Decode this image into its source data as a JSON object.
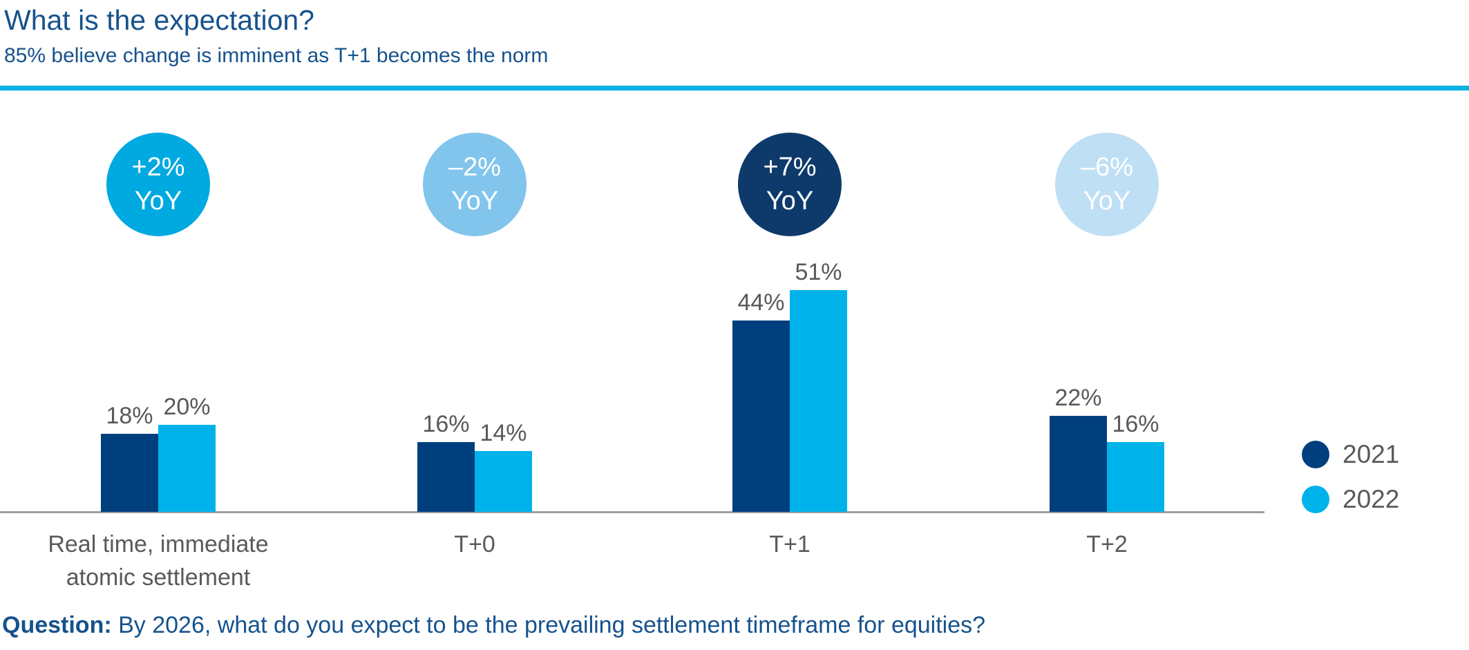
{
  "chart_data": {
    "type": "bar",
    "title": "What is the expectation?",
    "subtitle": "85% believe change is imminent as T+1 becomes the norm",
    "categories": [
      [
        "Real time, immediate",
        "atomic settlement"
      ],
      [
        "T+0"
      ],
      [
        "T+1"
      ],
      [
        "T+2"
      ]
    ],
    "series": [
      {
        "name": "2021",
        "color": "#003F7E",
        "values": [
          18,
          16,
          44,
          22
        ]
      },
      {
        "name": "2022",
        "color": "#00B2EA",
        "values": [
          20,
          14,
          51,
          16
        ]
      }
    ],
    "value_suffix": "%",
    "yoy_badges": [
      {
        "line1": "+2%",
        "line2": "YoY",
        "color": "#00A9E0"
      },
      {
        "line1": "–2%",
        "line2": "YoY",
        "color": "#82C5EC"
      },
      {
        "line1": "+7%",
        "line2": "YoY",
        "color": "#0D3A6B"
      },
      {
        "line1": "–6%",
        "line2": "YoY",
        "color": "#BFDFF5"
      }
    ],
    "ylim": [
      0,
      55
    ],
    "grid": false,
    "legend_position": "right",
    "axis_color": "#9D9D9D",
    "label_color": "#58595B"
  },
  "legend": {
    "items": [
      {
        "label": "2021",
        "color": "#003F7E"
      },
      {
        "label": "2022",
        "color": "#00B2EA"
      }
    ]
  },
  "question": {
    "label": "Question:",
    "text": " By 2026, what do you expect to be the prevailing settlement timeframe for equities?"
  },
  "accent": {
    "rule_color": "#00B2E3",
    "heading_color": "#16528C"
  }
}
